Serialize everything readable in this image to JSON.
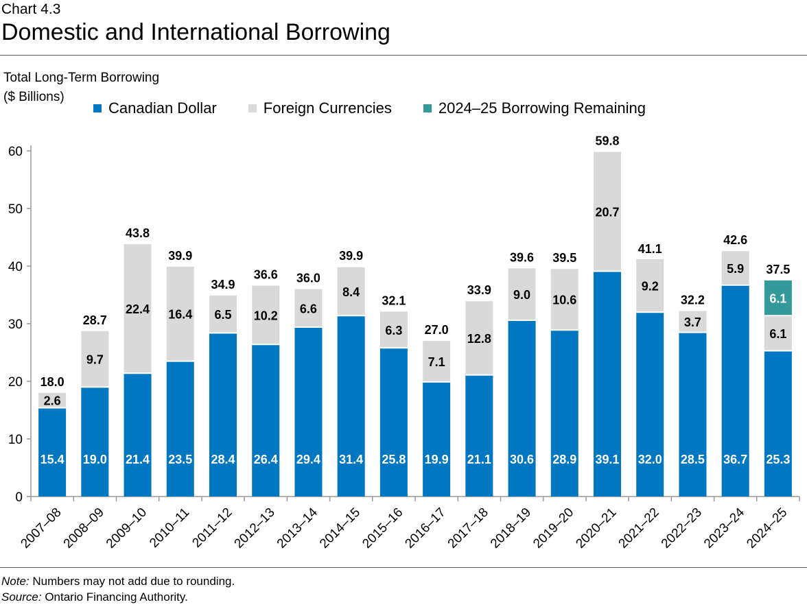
{
  "chart_label": "Chart 4.3",
  "title": "Domestic and International Borrowing",
  "note_label": "Note:",
  "note": " Numbers may not add due to rounding.",
  "source_label": "Source:",
  "source": " Ontario Financing Authority.",
  "chart_data": {
    "type": "bar",
    "stacked": true,
    "ylabel_line1": "Total Long-Term Borrowing",
    "ylabel_line2": "($ Billions)",
    "ylim": [
      0,
      60
    ],
    "yticks": [
      0,
      10,
      20,
      30,
      40,
      50,
      60
    ],
    "grid": false,
    "legend_position": "top",
    "categories": [
      "2007–08",
      "2008–09",
      "2009–10",
      "2010–11",
      "2011–12",
      "2012–13",
      "2013–14",
      "2014–15",
      "2015–16",
      "2016–17",
      "2017–18",
      "2018–19",
      "2019–20",
      "2020–21",
      "2021–22",
      "2022–23",
      "2023–24",
      "2024–25"
    ],
    "series": [
      {
        "name": "Canadian Dollar",
        "color": "#0077c0",
        "values": [
          15.4,
          19.0,
          21.4,
          23.5,
          28.4,
          26.4,
          29.4,
          31.4,
          25.8,
          19.9,
          21.1,
          30.6,
          28.9,
          39.1,
          32.0,
          28.5,
          36.7,
          25.3
        ]
      },
      {
        "name": "Foreign Currencies",
        "color": "#d9d9d9",
        "values": [
          2.6,
          9.7,
          22.4,
          16.4,
          6.5,
          10.2,
          6.6,
          8.4,
          6.3,
          7.1,
          12.8,
          9.0,
          10.6,
          20.7,
          9.2,
          3.7,
          5.9,
          6.1
        ]
      },
      {
        "name": "2024–25 Borrowing Remaining",
        "color": "#339999",
        "values": [
          null,
          null,
          null,
          null,
          null,
          null,
          null,
          null,
          null,
          null,
          null,
          null,
          null,
          null,
          null,
          null,
          null,
          6.1
        ]
      }
    ],
    "totals": [
      18.0,
      28.7,
      43.8,
      39.9,
      34.9,
      36.6,
      36.0,
      39.9,
      32.1,
      27.0,
      33.9,
      39.6,
      39.5,
      59.8,
      41.1,
      32.2,
      42.6,
      37.5
    ]
  }
}
